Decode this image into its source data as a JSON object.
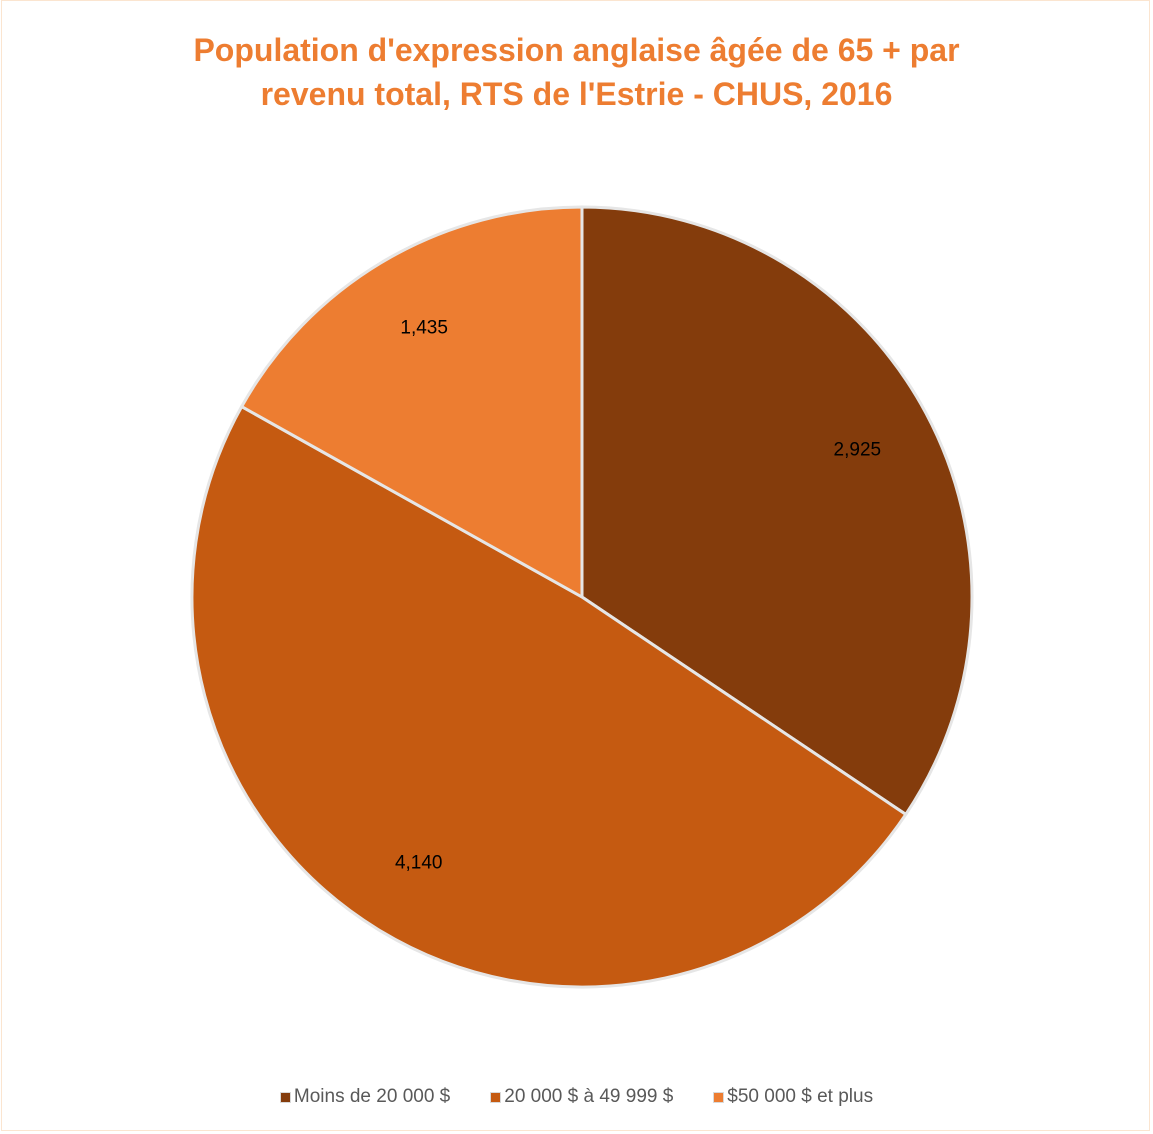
{
  "chart_data": {
    "type": "pie",
    "title_lines": [
      "Population d'expression anglaise âgée de 65 + par",
      "revenu total, RTS de l'Estrie - CHUS, 2016"
    ],
    "categories": [
      "Moins de 20 000 $",
      "20 000 $ à 49 999 $",
      "$50 000 $ et plus"
    ],
    "values": [
      2925,
      4140,
      1435
    ],
    "data_labels": [
      "2,925",
      "4,140",
      "1,435"
    ],
    "colors": [
      "#843c0c",
      "#c55a11",
      "#ed7d31"
    ],
    "start_angle_deg": 0,
    "direction": "clockwise",
    "legend_position": "bottom"
  }
}
